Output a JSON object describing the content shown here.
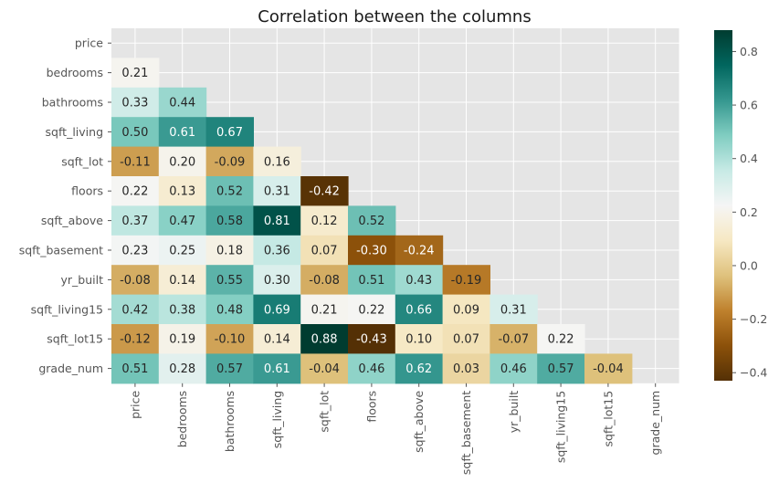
{
  "chart_data": {
    "type": "heatmap",
    "title": "Correlation between the columns",
    "mask": "upper-triangle-including-diagonal",
    "labels": [
      "price",
      "bedrooms",
      "bathrooms",
      "sqft_living",
      "sqft_lot",
      "floors",
      "sqft_above",
      "sqft_basement",
      "yr_built",
      "sqft_living15",
      "sqft_lot15",
      "grade_num"
    ],
    "rows": [
      [],
      [
        0.21
      ],
      [
        0.33,
        0.44
      ],
      [
        0.5,
        0.61,
        0.67
      ],
      [
        -0.11,
        0.2,
        -0.09,
        0.16
      ],
      [
        0.22,
        0.13,
        0.52,
        0.31,
        -0.42
      ],
      [
        0.37,
        0.47,
        0.58,
        0.81,
        0.12,
        0.52
      ],
      [
        0.23,
        0.25,
        0.18,
        0.36,
        0.07,
        -0.3,
        -0.24
      ],
      [
        -0.08,
        0.14,
        0.55,
        0.3,
        -0.08,
        0.51,
        0.43,
        -0.19
      ],
      [
        0.42,
        0.38,
        0.48,
        0.69,
        0.21,
        0.22,
        0.66,
        0.09,
        0.31
      ],
      [
        -0.12,
        0.19,
        -0.1,
        0.14,
        0.88,
        -0.43,
        0.1,
        0.07,
        -0.07,
        0.22
      ],
      [
        0.51,
        0.28,
        0.57,
        0.61,
        -0.04,
        0.46,
        0.62,
        0.03,
        0.46,
        0.57,
        -0.04
      ]
    ],
    "vmin": -0.43,
    "vmax": 0.88,
    "colormap": "BrBG",
    "colorbar_ticks": [
      -0.4,
      -0.2,
      0.0,
      0.2,
      0.4,
      0.6,
      0.8
    ],
    "grid": true,
    "background": "#e5e5e5"
  }
}
